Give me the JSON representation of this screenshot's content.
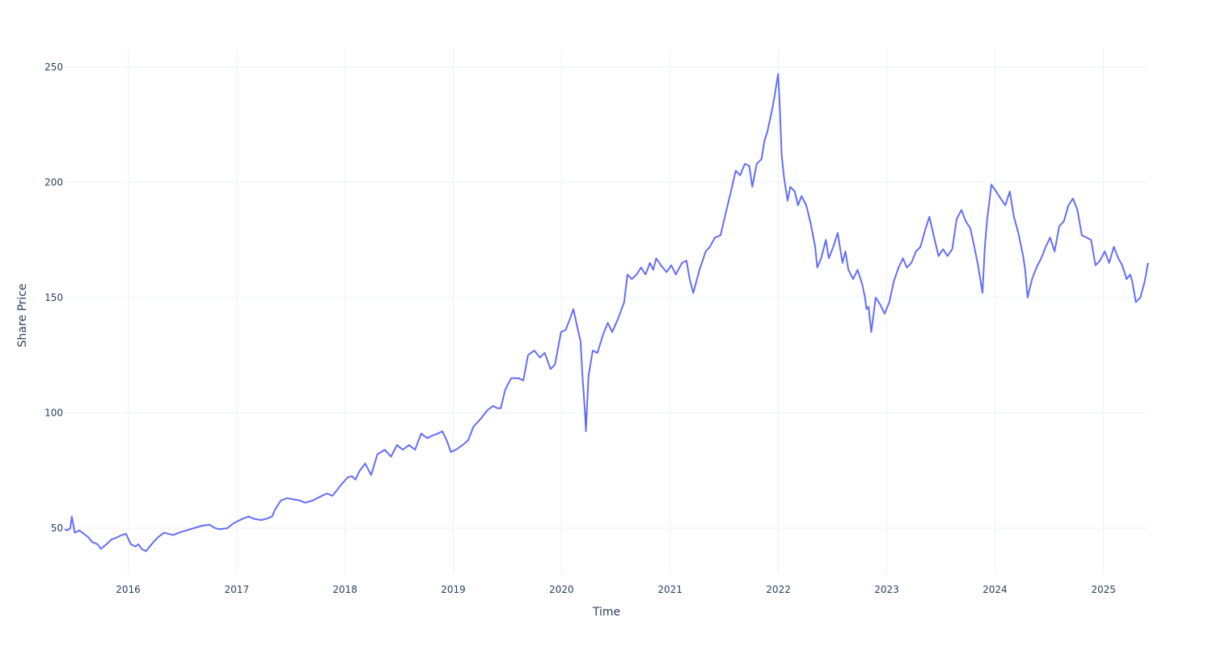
{
  "chart_data": {
    "type": "line",
    "title": "",
    "xlabel": "Time",
    "ylabel": "Share Price",
    "x_axis_kind": "date",
    "xlim": [
      "2015-06-01",
      "2025-06-01"
    ],
    "ylim": [
      30,
      258
    ],
    "x_ticks": [
      "2016",
      "2017",
      "2018",
      "2019",
      "2020",
      "2021",
      "2022",
      "2023",
      "2024",
      "2025"
    ],
    "x_tick_dates": [
      "2016-01-01",
      "2017-01-01",
      "2018-01-01",
      "2019-01-01",
      "2020-01-01",
      "2021-01-01",
      "2022-01-01",
      "2023-01-01",
      "2024-01-01",
      "2025-01-01"
    ],
    "y_ticks": [
      50,
      100,
      150,
      200,
      250
    ],
    "grid": true,
    "legend": "none",
    "line_color": "#636efa",
    "series": [
      {
        "x": [
          "2015-06-01",
          "2015-06-10",
          "2015-06-20",
          "2015-06-25",
          "2015-07-05",
          "2015-07-20",
          "2015-08-05",
          "2015-08-20",
          "2015-09-01",
          "2015-09-20",
          "2015-10-01",
          "2015-10-20",
          "2015-11-05",
          "2015-11-25",
          "2015-12-10",
          "2015-12-25",
          "2016-01-10",
          "2016-01-25",
          "2016-02-05",
          "2016-02-15",
          "2016-03-01",
          "2016-03-20",
          "2016-04-10",
          "2016-05-01",
          "2016-06-01",
          "2016-06-20",
          "2016-07-15",
          "2016-08-10",
          "2016-09-05",
          "2016-10-01",
          "2016-10-20",
          "2016-11-05",
          "2016-12-01",
          "2016-12-20",
          "2017-01-20",
          "2017-02-10",
          "2017-03-01",
          "2017-03-25",
          "2017-04-10",
          "2017-04-30",
          "2017-05-10",
          "2017-05-30",
          "2017-06-20",
          "2017-07-10",
          "2017-08-01",
          "2017-08-20",
          "2017-09-15",
          "2017-10-15",
          "2017-11-01",
          "2017-11-20",
          "2017-12-20",
          "2018-01-10",
          "2018-01-25",
          "2018-02-05",
          "2018-02-20",
          "2018-03-10",
          "2018-03-30",
          "2018-04-20",
          "2018-05-15",
          "2018-06-05",
          "2018-06-25",
          "2018-07-15",
          "2018-08-05",
          "2018-08-25",
          "2018-09-15",
          "2018-10-05",
          "2018-10-20",
          "2018-11-10",
          "2018-11-25",
          "2018-12-10",
          "2018-12-24",
          "2019-01-10",
          "2019-02-01",
          "2019-02-20",
          "2019-03-10",
          "2019-04-01",
          "2019-04-25",
          "2019-05-15",
          "2019-05-30",
          "2019-06-10",
          "2019-06-25",
          "2019-07-15",
          "2019-08-10",
          "2019-08-25",
          "2019-09-10",
          "2019-10-01",
          "2019-10-20",
          "2019-11-05",
          "2019-11-25",
          "2019-12-10",
          "2019-12-30",
          "2020-01-15",
          "2020-01-30",
          "2020-02-10",
          "2020-02-20",
          "2020-03-05",
          "2020-03-12",
          "2020-03-20",
          "2020-03-23",
          "2020-04-01",
          "2020-04-15",
          "2020-05-01",
          "2020-05-20",
          "2020-06-05",
          "2020-06-20",
          "2020-07-10",
          "2020-07-30",
          "2020-08-10",
          "2020-08-25",
          "2020-09-10",
          "2020-09-25",
          "2020-10-10",
          "2020-10-25",
          "2020-11-05",
          "2020-11-15",
          "2020-12-01",
          "2020-12-20",
          "2021-01-05",
          "2021-01-20",
          "2021-02-10",
          "2021-02-25",
          "2021-03-08",
          "2021-03-20",
          "2021-04-10",
          "2021-05-01",
          "2021-05-15",
          "2021-06-01",
          "2021-06-20",
          "2021-07-10",
          "2021-07-25",
          "2021-08-10",
          "2021-08-25",
          "2021-09-10",
          "2021-09-25",
          "2021-10-05",
          "2021-10-20",
          "2021-11-05",
          "2021-11-15",
          "2021-11-25",
          "2021-12-10",
          "2021-12-20",
          "2021-12-31",
          "2022-01-05",
          "2022-01-12",
          "2022-01-20",
          "2022-02-01",
          "2022-02-10",
          "2022-02-25",
          "2022-03-08",
          "2022-03-20",
          "2022-04-05",
          "2022-04-20",
          "2022-05-05",
          "2022-05-12",
          "2022-05-25",
          "2022-06-10",
          "2022-06-20",
          "2022-07-05",
          "2022-07-20",
          "2022-08-05",
          "2022-08-15",
          "2022-08-25",
          "2022-09-10",
          "2022-09-25",
          "2022-10-10",
          "2022-10-20",
          "2022-10-25",
          "2022-11-01",
          "2022-11-10",
          "2022-11-25",
          "2022-12-10",
          "2022-12-25",
          "2023-01-10",
          "2023-01-25",
          "2023-02-10",
          "2023-02-25",
          "2023-03-10",
          "2023-03-25",
          "2023-04-10",
          "2023-04-25",
          "2023-05-10",
          "2023-05-25",
          "2023-06-10",
          "2023-06-25",
          "2023-07-10",
          "2023-07-25",
          "2023-08-10",
          "2023-08-25",
          "2023-09-10",
          "2023-09-25",
          "2023-10-10",
          "2023-10-25",
          "2023-11-05",
          "2023-11-20",
          "2023-11-28",
          "2023-12-05",
          "2023-12-20",
          "2024-01-05",
          "2024-01-20",
          "2024-02-05",
          "2024-02-20",
          "2024-03-05",
          "2024-03-20",
          "2024-04-05",
          "2024-04-12",
          "2024-04-20",
          "2024-05-05",
          "2024-05-20",
          "2024-06-05",
          "2024-06-20",
          "2024-07-05",
          "2024-07-20",
          "2024-08-05",
          "2024-08-20",
          "2024-09-05",
          "2024-09-20",
          "2024-10-05",
          "2024-10-20",
          "2024-11-05",
          "2024-11-20",
          "2024-12-05",
          "2024-12-20",
          "2025-01-05",
          "2025-01-20",
          "2025-02-05",
          "2025-02-20",
          "2025-03-05",
          "2025-03-20",
          "2025-04-01",
          "2025-04-08",
          "2025-04-20",
          "2025-05-05",
          "2025-05-20",
          "2025-05-31"
        ],
        "y": [
          49.5,
          49.0,
          50.0,
          55.0,
          48.0,
          49.0,
          47.5,
          46.0,
          44.0,
          43.0,
          41.0,
          43.0,
          45.0,
          46.0,
          47.0,
          47.5,
          43.0,
          42.0,
          43.0,
          41.0,
          40.0,
          43.0,
          46.0,
          48.0,
          47.0,
          48.0,
          49.0,
          50.0,
          51.0,
          51.5,
          50.0,
          49.5,
          50.0,
          52.0,
          54.0,
          55.0,
          54.0,
          53.5,
          54.0,
          55.0,
          58.0,
          62.0,
          63.0,
          62.5,
          62.0,
          61.0,
          62.0,
          64.0,
          65.0,
          64.0,
          69.0,
          72.0,
          72.5,
          71.0,
          75.0,
          78.0,
          73.0,
          82.0,
          84.0,
          81.0,
          86.0,
          84.0,
          86.0,
          84.0,
          91.0,
          89.0,
          90.0,
          91.0,
          92.0,
          88.0,
          83.0,
          84.0,
          86.0,
          88.0,
          94.0,
          97.0,
          101.0,
          103.0,
          102.0,
          102.0,
          110.0,
          115.0,
          115.0,
          114.0,
          125.0,
          127.0,
          124.0,
          126.0,
          119.0,
          121.0,
          135.0,
          136.0,
          141.0,
          145.0,
          139.0,
          131.0,
          115.0,
          100.0,
          92.0,
          116.0,
          127.0,
          126.0,
          134.0,
          139.0,
          135.0,
          141.0,
          148.0,
          160.0,
          158.0,
          160.0,
          163.0,
          160.0,
          165.0,
          162.0,
          167.0,
          164.0,
          161.0,
          164.0,
          160.0,
          165.0,
          166.0,
          158.0,
          152.0,
          162.0,
          170.0,
          172.0,
          176.0,
          177.0,
          188.0,
          196.0,
          205.0,
          203.0,
          208.0,
          207.0,
          198.0,
          208.0,
          210.0,
          218.0,
          222.0,
          231.0,
          238.0,
          247.0,
          235.0,
          212.0,
          202.0,
          192.0,
          198.0,
          196.0,
          190.0,
          194.0,
          190.0,
          182.0,
          172.0,
          163.0,
          167.0,
          175.0,
          167.0,
          172.0,
          178.0,
          165.0,
          170.0,
          162.0,
          158.0,
          162.0,
          156.0,
          150.0,
          145.0,
          146.0,
          135.0,
          150.0,
          147.0,
          143.0,
          148.0,
          157.0,
          163.0,
          167.0,
          163.0,
          165.0,
          170.0,
          172.0,
          179.0,
          185.0,
          176.0,
          168.0,
          171.0,
          168.0,
          171.0,
          184.0,
          188.0,
          183.0,
          180.0,
          171.0,
          164.0,
          152.0,
          172.0,
          183.0,
          199.0,
          196.0,
          193.0,
          190.0,
          196.0,
          185.0,
          178.0,
          168.0,
          162.0,
          150.0,
          158.0,
          163.0,
          167.0,
          172.0,
          176.0,
          170.0,
          181.0,
          183.0,
          190.0,
          193.0,
          188.0,
          177.0,
          176.0,
          175.0,
          164.0,
          166.0,
          170.0,
          165.0,
          172.0,
          167.0,
          164.0,
          158.0,
          160.0,
          157.0,
          148.0,
          150.0,
          157.0,
          165.0
        ]
      }
    ]
  }
}
